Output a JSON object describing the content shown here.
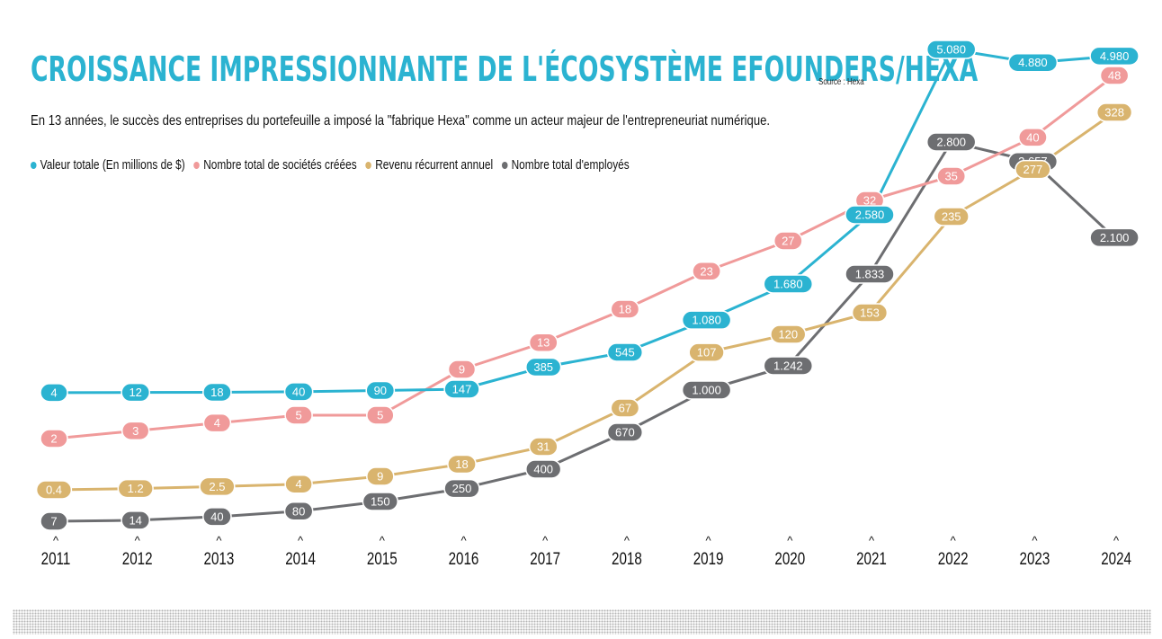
{
  "chart_data": {
    "type": "line",
    "title": "CROISSANCE IMPRESSIONNANTE DE L'ÉCOSYSTÈME EFOUNDERS/HEXA",
    "source": "Source : Hexa",
    "subtitle": "En 13 années, le succès des entreprises du portefeuille a imposé la \"fabrique Hexa\" comme un acteur majeur de l'entrepreneuriat numérique.",
    "x": [
      "2011",
      "2012",
      "2013",
      "2014",
      "2015",
      "2016",
      "2017",
      "2018",
      "2019",
      "2020",
      "2021",
      "2022",
      "2023",
      "2024"
    ],
    "tick_marker": "^",
    "legend_position": "top-left",
    "grid": false,
    "series": [
      {
        "name": "Valeur totale (En millions de $)",
        "color": "#2bb3d1",
        "values": [
          4,
          12,
          18,
          40,
          90,
          147,
          385,
          545,
          1080,
          1680,
          2580,
          5080,
          4880,
          4980
        ],
        "labels": [
          "4",
          "12",
          "18",
          "40",
          "90",
          "147",
          "385",
          "545",
          "1.080",
          "1.680",
          "2.580",
          "5.080",
          "4.880",
          "4.980"
        ]
      },
      {
        "name": "Nombre total de sociétés créées",
        "color": "#f09a9a",
        "values": [
          2,
          3,
          4,
          5,
          5,
          9,
          13,
          18,
          23,
          27,
          32,
          35,
          40,
          48
        ],
        "labels": [
          "2",
          "3",
          "4",
          "5",
          "5",
          "9",
          "13",
          "18",
          "23",
          "27",
          "32",
          "35",
          "40",
          "48"
        ]
      },
      {
        "name": "Revenu récurrent annuel",
        "color": "#d9b46e",
        "values": [
          0.4,
          1.2,
          2.5,
          4,
          9,
          18,
          31,
          67,
          107,
          120,
          153,
          235,
          277,
          328
        ],
        "labels": [
          "0.4",
          "1.2",
          "2.5",
          "4",
          "9",
          "18",
          "31",
          "67",
          "107",
          "120",
          "153",
          "235",
          "277",
          "328"
        ]
      },
      {
        "name": "Nombre total d'employés",
        "color": "#6d6e71",
        "values": [
          7,
          14,
          40,
          80,
          150,
          250,
          400,
          670,
          1000,
          1242,
          1833,
          2800,
          2657,
          2100
        ],
        "labels": [
          "7",
          "14",
          "40",
          "80",
          "150",
          "250",
          "400",
          "670",
          "1.000",
          "1.242",
          "1.833",
          "2.800",
          "2.657",
          "2.100"
        ]
      }
    ]
  }
}
